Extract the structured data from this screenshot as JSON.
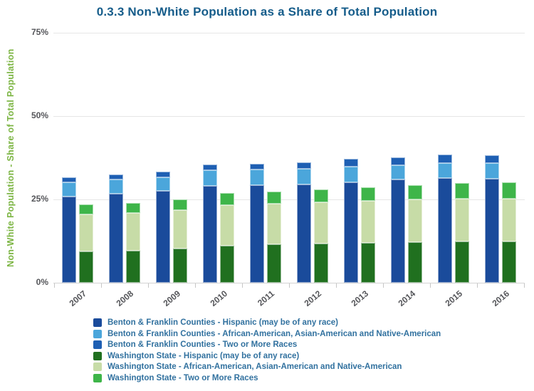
{
  "chart_data": {
    "type": "bar",
    "stacked": true,
    "title": "0.3.3 Non-White Population as a Share of Total Population",
    "xlabel": "",
    "ylabel": "Non-White Population - Share of Total Population",
    "units": "percent",
    "ylim": [
      0,
      75
    ],
    "yticks": [
      {
        "label": "0%",
        "value": 0
      },
      {
        "label": "25%",
        "value": 25
      },
      {
        "label": "50%",
        "value": 50
      },
      {
        "label": "75%",
        "value": 75
      }
    ],
    "grid": true,
    "legend_position": "bottom",
    "categories": [
      "2007",
      "2008",
      "2009",
      "2010",
      "2011",
      "2012",
      "2013",
      "2014",
      "2015",
      "2016"
    ],
    "stacks": [
      "Benton & Franklin Counties",
      "Washington State"
    ],
    "series": [
      {
        "key": "bf-hispanic",
        "name": "Benton & Franklin Counties - Hispanic (may be of any race)",
        "stack": "Benton & Franklin Counties",
        "color": "#1A4B9B",
        "values": [
          25.9,
          26.7,
          27.5,
          29.0,
          29.2,
          29.4,
          30.2,
          30.9,
          31.4,
          31.2
        ]
      },
      {
        "key": "bf-african-asian-native-american",
        "name": "Benton & Franklin Counties - African-American, Asian-American and Native-American",
        "stack": "Benton & Franklin Counties",
        "color": "#4BA6DB",
        "values": [
          4.2,
          4.3,
          4.2,
          4.8,
          4.8,
          4.7,
          4.7,
          4.3,
          4.5,
          4.6
        ]
      },
      {
        "key": "bf-two-or-more-races",
        "name": "Benton & Franklin Counties - Two or More Races",
        "stack": "Benton & Franklin Counties",
        "color": "#1E5FB3",
        "values": [
          1.6,
          1.5,
          1.6,
          1.7,
          1.7,
          2.0,
          2.2,
          2.4,
          2.5,
          2.4
        ]
      },
      {
        "key": "wa-hispanic",
        "name": "Washington State - Hispanic (may be of any race)",
        "stack": "Washington State",
        "color": "#20701F",
        "values": [
          9.3,
          9.7,
          10.2,
          11.2,
          11.5,
          11.7,
          11.9,
          12.1,
          12.3,
          12.4
        ]
      },
      {
        "key": "wa-african-asian-native-american",
        "name": "Washington State - African-American, Asian-American and Native-American",
        "stack": "Washington State",
        "color": "#C7DCA7",
        "values": [
          11.3,
          11.2,
          11.6,
          12.1,
          12.2,
          12.4,
          12.7,
          12.8,
          13.0,
          12.9
        ]
      },
      {
        "key": "wa-two-or-more-races",
        "name": "Washington State - Two or More Races",
        "stack": "Washington State",
        "color": "#3EB549",
        "values": [
          2.9,
          3.1,
          3.2,
          3.6,
          3.7,
          3.9,
          4.1,
          4.4,
          4.7,
          4.9
        ]
      }
    ]
  }
}
